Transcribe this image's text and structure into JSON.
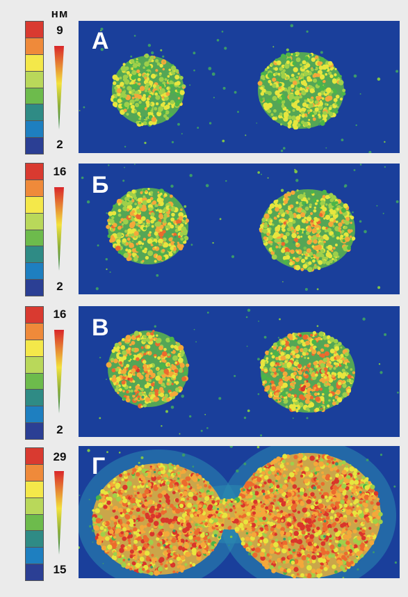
{
  "unit": "нм",
  "colors": {
    "scale": [
      "#d93a30",
      "#ef8a3a",
      "#f4e84a",
      "#b9d85a",
      "#6dbb4c",
      "#2f8b85",
      "#1e7fc0",
      "#2b3f94"
    ],
    "background": "#1a3f9b"
  },
  "panels": [
    {
      "letter": "А",
      "max": "9",
      "min": "2",
      "intensity": 0.15
    },
    {
      "letter": "Б",
      "max": "16",
      "min": "2",
      "intensity": 0.35
    },
    {
      "letter": "В",
      "max": "16",
      "min": "2",
      "intensity": 0.5
    },
    {
      "letter": "Г",
      "max": "29",
      "min": "15",
      "intensity": 0.8
    }
  ]
}
